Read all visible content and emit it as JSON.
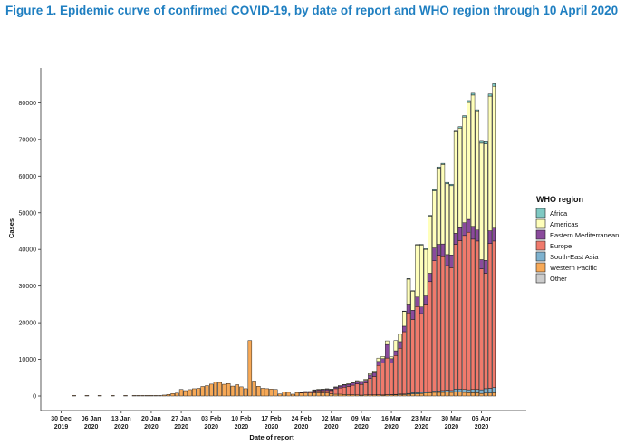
{
  "figure": {
    "title": "Figure 1. Epidemic curve of confirmed COVID-19, by date of report and WHO region through 10 April 2020"
  },
  "chart_data": {
    "type": "bar",
    "stacked": true,
    "xlabel": "Date of report",
    "ylabel": "Cases",
    "ylim": [
      0,
      88000
    ],
    "y_ticks": [
      0,
      10000,
      20000,
      30000,
      40000,
      50000,
      60000,
      70000,
      80000
    ],
    "x_tick_labels": [
      {
        "line1": "30 Dec",
        "line2": "2019",
        "day": 0
      },
      {
        "line1": "06 Jan",
        "line2": "2020",
        "day": 7
      },
      {
        "line1": "13 Jan",
        "line2": "2020",
        "day": 14
      },
      {
        "line1": "20 Jan",
        "line2": "2020",
        "day": 21
      },
      {
        "line1": "27 Jan",
        "line2": "2020",
        "day": 28
      },
      {
        "line1": "03 Feb",
        "line2": "2020",
        "day": 35
      },
      {
        "line1": "10 Feb",
        "line2": "2020",
        "day": 42
      },
      {
        "line1": "17 Feb",
        "line2": "2020",
        "day": 49
      },
      {
        "line1": "24 Feb",
        "line2": "2020",
        "day": 56
      },
      {
        "line1": "02 Mar",
        "line2": "2020",
        "day": 63
      },
      {
        "line1": "09 Mar",
        "line2": "2020",
        "day": 70
      },
      {
        "line1": "16 Mar",
        "line2": "2020",
        "day": 77
      },
      {
        "line1": "23 Mar",
        "line2": "2020",
        "day": 84
      },
      {
        "line1": "30 Mar",
        "line2": "2020",
        "day": 91
      },
      {
        "line1": "06 Apr",
        "line2": "2020",
        "day": 98
      }
    ],
    "legend": {
      "title": "WHO region",
      "placement": "right",
      "entries": [
        {
          "name": "Africa",
          "color": "#7fc9c3"
        },
        {
          "name": "Americas",
          "color": "#ffffbb"
        },
        {
          "name": "Eastern Mediterranean",
          "color": "#8a4a9c"
        },
        {
          "name": "Europe",
          "color": "#f07a6c"
        },
        {
          "name": "South-East Asia",
          "color": "#7eb2cf"
        },
        {
          "name": "Western Pacific",
          "color": "#f7a957"
        },
        {
          "name": "Other",
          "color": "#cccccc"
        }
      ]
    },
    "stack_order": [
      "Western Pacific",
      "South-East Asia",
      "Europe",
      "Eastern Mediterranean",
      "Americas",
      "Africa",
      "Other"
    ],
    "days": [
      {
        "day": 3,
        "values": {
          "Western Pacific": 27
        }
      },
      {
        "day": 6,
        "values": {
          "Western Pacific": 15
        }
      },
      {
        "day": 9,
        "values": {
          "Western Pacific": 7
        }
      },
      {
        "day": 12,
        "values": {
          "Western Pacific": 4
        }
      },
      {
        "day": 15,
        "values": {
          "Western Pacific": 3
        }
      },
      {
        "day": 17,
        "values": {
          "Western Pacific": 4
        }
      },
      {
        "day": 18,
        "values": {
          "Western Pacific": 17
        }
      },
      {
        "day": 19,
        "values": {
          "Western Pacific": 136
        }
      },
      {
        "day": 20,
        "values": {
          "Western Pacific": 19
        }
      },
      {
        "day": 21,
        "values": {
          "Western Pacific": 151
        }
      },
      {
        "day": 22,
        "values": {
          "Western Pacific": 140
        }
      },
      {
        "day": 23,
        "values": {
          "Western Pacific": 97
        }
      },
      {
        "day": 24,
        "values": {
          "Western Pacific": 259
        }
      },
      {
        "day": 25,
        "values": {
          "Western Pacific": 441
        }
      },
      {
        "day": 26,
        "values": {
          "Western Pacific": 665
        }
      },
      {
        "day": 27,
        "values": {
          "Western Pacific": 787
        }
      },
      {
        "day": 28,
        "values": {
          "Western Pacific": 1800
        }
      },
      {
        "day": 29,
        "values": {
          "Western Pacific": 1480
        }
      },
      {
        "day": 30,
        "values": {
          "Western Pacific": 1750
        }
      },
      {
        "day": 31,
        "values": {
          "Western Pacific": 1990
        }
      },
      {
        "day": 32,
        "values": {
          "Western Pacific": 2100
        }
      },
      {
        "day": 33,
        "values": {
          "Western Pacific": 2600
        }
      },
      {
        "day": 34,
        "values": {
          "Western Pacific": 2830
        }
      },
      {
        "day": 35,
        "values": {
          "Western Pacific": 3240
        }
      },
      {
        "day": 36,
        "values": {
          "Western Pacific": 3900
        }
      },
      {
        "day": 37,
        "values": {
          "Western Pacific": 3700
        }
      },
      {
        "day": 38,
        "values": {
          "Western Pacific": 3200
        }
      },
      {
        "day": 39,
        "values": {
          "Western Pacific": 3400
        }
      },
      {
        "day": 40,
        "values": {
          "Western Pacific": 2700
        }
      },
      {
        "day": 41,
        "values": {
          "Western Pacific": 3100
        }
      },
      {
        "day": 42,
        "values": {
          "Western Pacific": 2500
        }
      },
      {
        "day": 43,
        "values": {
          "Western Pacific": 2000
        }
      },
      {
        "day": 44,
        "values": {
          "Western Pacific": 15150
        }
      },
      {
        "day": 45,
        "values": {
          "Western Pacific": 4100
        }
      },
      {
        "day": 46,
        "values": {
          "Western Pacific": 2650
        }
      },
      {
        "day": 47,
        "values": {
          "Western Pacific": 2100
        }
      },
      {
        "day": 48,
        "values": {
          "Western Pacific": 2000
        }
      },
      {
        "day": 49,
        "values": {
          "Western Pacific": 1900
        }
      },
      {
        "day": 50,
        "values": {
          "Western Pacific": 1800
        }
      },
      {
        "day": 51,
        "values": {
          "Western Pacific": 550
        }
      },
      {
        "day": 52,
        "values": {
          "Western Pacific": 1050
        }
      },
      {
        "day": 53,
        "values": {
          "Western Pacific": 1000
        }
      },
      {
        "day": 54,
        "values": {
          "Western Pacific": 500
        }
      },
      {
        "day": 55,
        "values": {
          "Western Pacific": 950
        }
      },
      {
        "day": 56,
        "values": {
          "Western Pacific": 800,
          "Europe": 180,
          "Eastern Mediterranean": 50
        }
      },
      {
        "day": 57,
        "values": {
          "Western Pacific": 850,
          "Europe": 250,
          "Eastern Mediterranean": 100
        }
      },
      {
        "day": 58,
        "values": {
          "Western Pacific": 800,
          "Europe": 300,
          "Eastern Mediterranean": 150
        }
      },
      {
        "day": 59,
        "values": {
          "Western Pacific": 850,
          "Europe": 500,
          "Eastern Mediterranean": 200,
          "Americas": 20
        }
      },
      {
        "day": 60,
        "values": {
          "Western Pacific": 900,
          "Europe": 550,
          "Eastern Mediterranean": 250,
          "Americas": 30
        }
      },
      {
        "day": 61,
        "values": {
          "Western Pacific": 850,
          "Europe": 600,
          "Eastern Mediterranean": 300,
          "Americas": 30
        }
      },
      {
        "day": 62,
        "values": {
          "Western Pacific": 800,
          "Europe": 700,
          "Eastern Mediterranean": 350,
          "Americas": 40
        }
      },
      {
        "day": 63,
        "values": {
          "Western Pacific": 600,
          "Europe": 900,
          "Eastern Mediterranean": 250,
          "Americas": 40
        }
      },
      {
        "day": 64,
        "values": {
          "Western Pacific": 500,
          "Europe": 1500,
          "Eastern Mediterranean": 350,
          "Americas": 60
        }
      },
      {
        "day": 65,
        "values": {
          "Western Pacific": 500,
          "Europe": 1700,
          "Eastern Mediterranean": 500,
          "Americas": 80
        }
      },
      {
        "day": 66,
        "values": {
          "Western Pacific": 400,
          "Europe": 2000,
          "Eastern Mediterranean": 600,
          "Americas": 100
        }
      },
      {
        "day": 67,
        "values": {
          "Western Pacific": 400,
          "Europe": 2200,
          "Eastern Mediterranean": 600,
          "Americas": 200
        }
      },
      {
        "day": 68,
        "values": {
          "Western Pacific": 350,
          "Europe": 2600,
          "Eastern Mediterranean": 600,
          "Americas": 150
        }
      },
      {
        "day": 69,
        "values": {
          "Western Pacific": 300,
          "Europe": 3000,
          "Eastern Mediterranean": 700,
          "Americas": 200
        }
      },
      {
        "day": 70,
        "values": {
          "Western Pacific": 250,
          "Europe": 2900,
          "Eastern Mediterranean": 650,
          "Americas": 200
        }
      },
      {
        "day": 71,
        "values": {
          "Western Pacific": 300,
          "Europe": 3300,
          "Eastern Mediterranean": 700,
          "Americas": 300
        }
      },
      {
        "day": 72,
        "values": {
          "Western Pacific": 300,
          "Europe": 4500,
          "Eastern Mediterranean": 900,
          "Americas": 400,
          "South-East Asia": 20
        }
      },
      {
        "day": 73,
        "values": {
          "Western Pacific": 300,
          "Europe": 5000,
          "Eastern Mediterranean": 1000,
          "Americas": 500,
          "South-East Asia": 30
        }
      },
      {
        "day": 74,
        "values": {
          "Western Pacific": 300,
          "Europe": 8000,
          "Eastern Mediterranean": 1100,
          "Americas": 900,
          "South-East Asia": 40
        }
      },
      {
        "day": 75,
        "values": {
          "Western Pacific": 250,
          "Europe": 8700,
          "Eastern Mediterranean": 1200,
          "Americas": 600,
          "South-East Asia": 50
        }
      },
      {
        "day": 76,
        "values": {
          "Western Pacific": 300,
          "Europe": 10000,
          "Eastern Mediterranean": 3700,
          "Americas": 1000,
          "South-East Asia": 60
        }
      },
      {
        "day": 77,
        "values": {
          "Western Pacific": 300,
          "Europe": 8600,
          "Eastern Mediterranean": 1200,
          "Americas": 500,
          "South-East Asia": 80
        }
      },
      {
        "day": 78,
        "values": {
          "Western Pacific": 350,
          "Europe": 10600,
          "Eastern Mediterranean": 1300,
          "Americas": 2800,
          "South-East Asia": 100
        }
      },
      {
        "day": 79,
        "values": {
          "Western Pacific": 400,
          "Europe": 12500,
          "Eastern Mediterranean": 1800,
          "Americas": 2000,
          "South-East Asia": 150
        }
      },
      {
        "day": 80,
        "values": {
          "Western Pacific": 400,
          "Europe": 17000,
          "Eastern Mediterranean": 1500,
          "Americas": 4000,
          "South-East Asia": 150,
          "Africa": 50
        }
      },
      {
        "day": 81,
        "values": {
          "Western Pacific": 500,
          "Europe": 22000,
          "Eastern Mediterranean": 2400,
          "Americas": 6800,
          "South-East Asia": 200,
          "Africa": 50
        }
      },
      {
        "day": 82,
        "values": {
          "Western Pacific": 600,
          "Europe": 20000,
          "Eastern Mediterranean": 2500,
          "Americas": 5200,
          "South-East Asia": 300,
          "Africa": 100
        }
      },
      {
        "day": 83,
        "values": {
          "Western Pacific": 600,
          "Europe": 23500,
          "Eastern Mediterranean": 2600,
          "Americas": 14200,
          "South-East Asia": 300,
          "Africa": 100
        }
      },
      {
        "day": 84,
        "values": {
          "Western Pacific": 700,
          "Europe": 21500,
          "Eastern Mediterranean": 1800,
          "Americas": 16900,
          "South-East Asia": 300,
          "Africa": 200
        }
      },
      {
        "day": 85,
        "values": {
          "Western Pacific": 800,
          "Europe": 24000,
          "Eastern Mediterranean": 2200,
          "Americas": 12700,
          "South-East Asia": 300,
          "Africa": 200
        }
      },
      {
        "day": 86,
        "values": {
          "Western Pacific": 900,
          "Europe": 30000,
          "Eastern Mediterranean": 2300,
          "Americas": 15600,
          "South-East Asia": 300,
          "Africa": 200
        }
      },
      {
        "day": 87,
        "values": {
          "Western Pacific": 1000,
          "Europe": 35500,
          "Eastern Mediterranean": 3500,
          "Americas": 15600,
          "South-East Asia": 400,
          "Africa": 300
        }
      },
      {
        "day": 88,
        "values": {
          "Western Pacific": 1000,
          "Europe": 37000,
          "Eastern Mediterranean": 3000,
          "Americas": 20800,
          "South-East Asia": 400,
          "Africa": 300
        }
      },
      {
        "day": 89,
        "values": {
          "Western Pacific": 1000,
          "Europe": 36500,
          "Eastern Mediterranean": 3500,
          "Americas": 21700,
          "South-East Asia": 500,
          "Africa": 300
        }
      },
      {
        "day": 90,
        "values": {
          "Western Pacific": 1100,
          "Europe": 34000,
          "Eastern Mediterranean": 3000,
          "Americas": 19300,
          "South-East Asia": 500,
          "Africa": 400
        }
      },
      {
        "day": 91,
        "values": {
          "Western Pacific": 1000,
          "Europe": 33500,
          "Eastern Mediterranean": 3500,
          "Americas": 18900,
          "South-East Asia": 500,
          "Africa": 400
        }
      },
      {
        "day": 92,
        "values": {
          "Western Pacific": 1200,
          "Europe": 39500,
          "Eastern Mediterranean": 3000,
          "Americas": 27700,
          "South-East Asia": 700,
          "Africa": 400
        }
      },
      {
        "day": 93,
        "values": {
          "Western Pacific": 1200,
          "Europe": 40500,
          "Eastern Mediterranean": 3500,
          "Americas": 27200,
          "South-East Asia": 700,
          "Africa": 400
        }
      },
      {
        "day": 94,
        "values": {
          "Western Pacific": 1000,
          "Europe": 42000,
          "Eastern Mediterranean": 3500,
          "Americas": 28800,
          "South-East Asia": 800,
          "Africa": 400
        }
      },
      {
        "day": 95,
        "values": {
          "Western Pacific": 900,
          "Europe": 43000,
          "Eastern Mediterranean": 3500,
          "Americas": 31900,
          "South-East Asia": 800,
          "Africa": 500
        }
      },
      {
        "day": 96,
        "values": {
          "Western Pacific": 900,
          "Europe": 41000,
          "Eastern Mediterranean": 3500,
          "Americas": 35800,
          "South-East Asia": 900,
          "Africa": 500
        }
      },
      {
        "day": 97,
        "values": {
          "Western Pacific": 900,
          "Europe": 40500,
          "Eastern Mediterranean": 3000,
          "Americas": 32300,
          "South-East Asia": 900,
          "Africa": 500
        }
      },
      {
        "day": 98,
        "values": {
          "Western Pacific": 700,
          "Europe": 33000,
          "Eastern Mediterranean": 2500,
          "Americas": 31800,
          "South-East Asia": 1000,
          "Africa": 500
        }
      },
      {
        "day": 99,
        "values": {
          "Western Pacific": 800,
          "Europe": 31500,
          "Eastern Mediterranean": 3500,
          "Americas": 31800,
          "South-East Asia": 1200,
          "Africa": 600
        }
      },
      {
        "day": 100,
        "values": {
          "Western Pacific": 800,
          "Europe": 39500,
          "Eastern Mediterranean": 3500,
          "Americas": 36700,
          "South-East Asia": 1300,
          "Africa": 600
        }
      },
      {
        "day": 101,
        "values": {
          "Western Pacific": 900,
          "Europe": 40000,
          "Eastern Mediterranean": 3500,
          "Americas": 38700,
          "South-East Asia": 1400,
          "Africa": 700
        }
      }
    ]
  }
}
